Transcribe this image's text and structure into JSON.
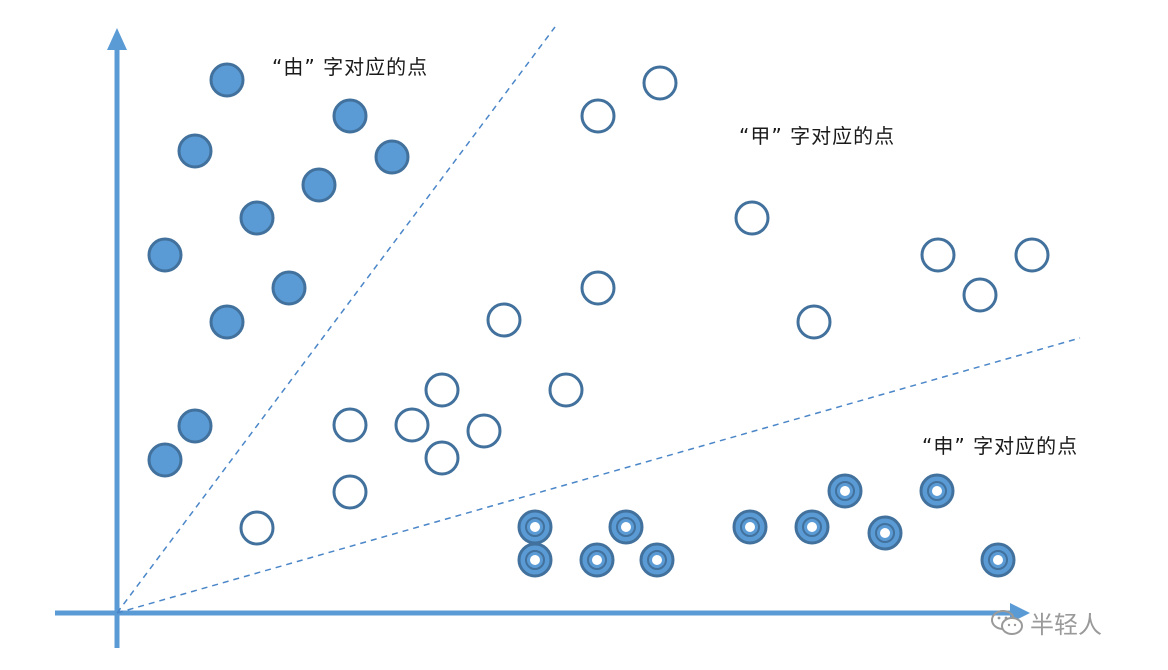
{
  "colors": {
    "axis": "#5b9bd5",
    "divider": "#4a86c8",
    "filled": "#5b9bd5",
    "stroke": "#41719c",
    "ring_inner": "#ffffff",
    "text": "#1a1a1a",
    "watermark": "#9a9a9a"
  },
  "labels": {
    "you": "“由” 字对应的点",
    "jia": "“甲” 字对应的点",
    "shen": "“申” 字对应的点"
  },
  "watermark": {
    "text": "半轻人",
    "icon": "wechat-icon"
  },
  "point_groups": {
    "you": {
      "style": "filled",
      "points": [
        [
          227,
          80
        ],
        [
          195,
          151
        ],
        [
          350,
          116
        ],
        [
          392,
          157
        ],
        [
          319,
          185
        ],
        [
          257,
          218
        ],
        [
          165,
          255
        ],
        [
          289,
          288
        ],
        [
          227,
          322
        ],
        [
          195,
          426
        ],
        [
          165,
          460
        ]
      ]
    },
    "jia": {
      "style": "hollow",
      "points": [
        [
          660,
          83
        ],
        [
          598,
          116
        ],
        [
          752,
          218
        ],
        [
          938,
          255
        ],
        [
          1032,
          255
        ],
        [
          980,
          295
        ],
        [
          598,
          288
        ],
        [
          814,
          322
        ],
        [
          504,
          320
        ],
        [
          442,
          390
        ],
        [
          566,
          390
        ],
        [
          412,
          425
        ],
        [
          484,
          431
        ],
        [
          350,
          425
        ],
        [
          442,
          458
        ],
        [
          350,
          492
        ],
        [
          257,
          528
        ]
      ]
    },
    "shen": {
      "style": "target",
      "points": [
        [
          535,
          527
        ],
        [
          626,
          527
        ],
        [
          750,
          527
        ],
        [
          812,
          527
        ],
        [
          845,
          491
        ],
        [
          937,
          491
        ],
        [
          885,
          533
        ],
        [
          535,
          560
        ],
        [
          597,
          560
        ],
        [
          657,
          560
        ],
        [
          998,
          560
        ]
      ]
    }
  }
}
